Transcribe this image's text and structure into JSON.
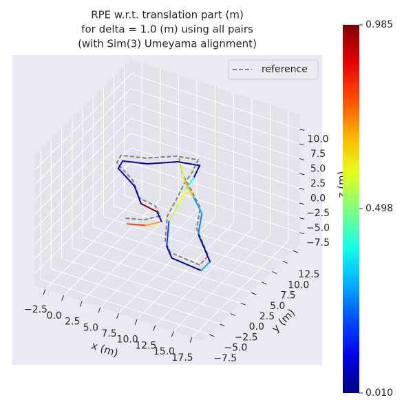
{
  "chart_data": {
    "type": "trajectory3d",
    "title": [
      "RPE w.r.t. translation part (m)",
      "for delta = 1.0 (m) using all pairs",
      "(with Sim(3) Umeyama alignment)"
    ],
    "xlabel": "x (m)",
    "ylabel": "y (m)",
    "zlabel": "z (m)",
    "xlim": [
      -4,
      19
    ],
    "ylim": [
      -9,
      14
    ],
    "zlim": [
      -9.5,
      12.5
    ],
    "xticks": [
      {
        "value": -2.5,
        "label": "−2.5"
      },
      {
        "value": 0,
        "label": "0.0"
      },
      {
        "value": 2.5,
        "label": "2.5"
      },
      {
        "value": 5,
        "label": "5.0"
      },
      {
        "value": 7.5,
        "label": "7.5"
      },
      {
        "value": 10,
        "label": "10.0"
      },
      {
        "value": 12.5,
        "label": "12.5"
      },
      {
        "value": 15,
        "label": "15.0"
      },
      {
        "value": 17.5,
        "label": "17.5"
      }
    ],
    "yticks": [
      {
        "value": -7.5,
        "label": "−7.5"
      },
      {
        "value": -5,
        "label": "−5.0"
      },
      {
        "value": -2.5,
        "label": "−2.5"
      },
      {
        "value": 0,
        "label": "0.0"
      },
      {
        "value": 2.5,
        "label": "2.5"
      },
      {
        "value": 5,
        "label": "5.0"
      },
      {
        "value": 7.5,
        "label": "7.5"
      },
      {
        "value": 10,
        "label": "10.0"
      },
      {
        "value": 12.5,
        "label": "12.5"
      }
    ],
    "zticks": [
      {
        "value": -7.5,
        "label": "−7.5"
      },
      {
        "value": -5,
        "label": "−5.0"
      },
      {
        "value": -2.5,
        "label": "−2.5"
      },
      {
        "value": 0,
        "label": "0.0"
      },
      {
        "value": 2.5,
        "label": "2.5"
      },
      {
        "value": 5,
        "label": "5.0"
      },
      {
        "value": 7.5,
        "label": "7.5"
      },
      {
        "value": 10,
        "label": "10.0"
      }
    ],
    "grid": true,
    "legend": {
      "loc": "upper right"
    },
    "colormap": "jet",
    "clim": [
      0.01,
      0.985
    ],
    "cticks": [
      {
        "value": 0.01,
        "label": "0.010"
      },
      {
        "value": 0.498,
        "label": "0.498"
      },
      {
        "value": 0.985,
        "label": "0.985"
      }
    ],
    "series": [
      {
        "name": "reference",
        "color": "#808080",
        "linestyle": "dashed",
        "x": [
          3.0,
          5.6,
          7.7,
          7.1,
          4.9,
          4.0,
          1.8,
          2.4,
          5.8,
          9.9,
          12.9,
          12.1,
          11.0,
          9.9,
          8.7,
          8.4,
          9.1,
          13.1,
          14.3,
          12.7,
          13.2,
          12.0,
          10.8,
          10.3
        ],
        "y": [
          0.5,
          0.5,
          0.5,
          0.5,
          0.5,
          0.5,
          0.5,
          0.5,
          0.5,
          0.5,
          0.5,
          0.5,
          0.5,
          0.5,
          0.5,
          0.5,
          0.5,
          0.5,
          0.5,
          0.5,
          0.5,
          0.5,
          0.5,
          0.5
        ],
        "z": [
          -2.0,
          -1.2,
          0.3,
          1.7,
          2.2,
          4.8,
          6.9,
          8.4,
          9.3,
          11.3,
          11.9,
          9.5,
          7.1,
          3.9,
          0.7,
          -3.6,
          -5.3,
          -5.8,
          -3.8,
          0.2,
          3.9,
          6.3,
          8.5,
          11.1
        ]
      },
      {
        "x": [
          3.5,
          6.1,
          8.2,
          7.6,
          5.4,
          4.5,
          2.3,
          2.9,
          6.3,
          10.4,
          13.4,
          12.6,
          11.5,
          10.4,
          9.2,
          8.9,
          9.6,
          13.6,
          14.8,
          13.2,
          13.7,
          12.5,
          11.3,
          10.8
        ],
        "y": [
          0,
          0,
          0,
          0,
          0,
          0,
          0,
          0,
          0,
          0,
          0,
          0,
          0,
          0,
          0,
          0,
          0,
          0,
          0,
          0,
          0,
          0,
          0,
          0
        ],
        "z": [
          -2.4,
          -1.6,
          -0.1,
          1.3,
          1.8,
          4.4,
          6.5,
          8.0,
          8.9,
          10.9,
          11.5,
          9.1,
          6.7,
          3.5,
          0.3,
          -4.0,
          -5.7,
          -6.2,
          -4.2,
          -0.2,
          3.5,
          5.9,
          8.1,
          10.7
        ],
        "error": [
          0.8,
          0.7,
          0.1,
          0.98,
          0.06,
          0.05,
          0.12,
          0.05,
          0.04,
          0.05,
          0.08,
          0.4,
          0.62,
          0.55,
          0.2,
          0.05,
          0.04,
          0.3,
          0.06,
          0.25,
          0.3,
          0.68,
          0.58,
          0.1
        ]
      }
    ]
  }
}
